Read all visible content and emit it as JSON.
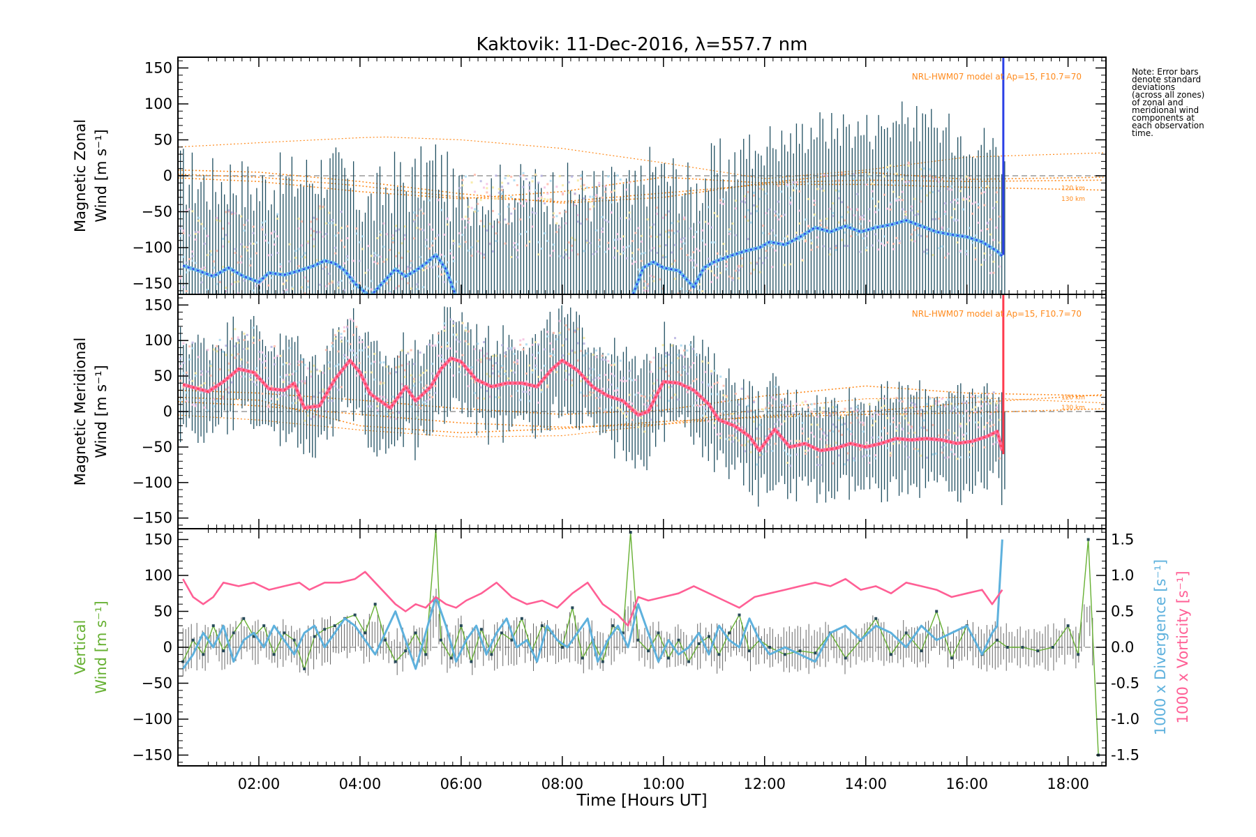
{
  "figure": {
    "title": "Kaktovik: 11-Dec-2016, λ=557.7 nm",
    "xlabel": "Time [Hours UT]",
    "note_lines": [
      "Note: Error bars",
      "denote standard",
      "deviations",
      "(across all zones)",
      "of zonal and",
      "meridional wind",
      "components at",
      "each observation",
      "time."
    ],
    "model_label": "NRL-HWM07 model at Ap=15, F10.7=70",
    "alt_labels": [
      "120 km",
      "130 km"
    ],
    "colors": {
      "zonal": "#2b40e6",
      "zonal_light": "#69b9ec",
      "meridional": "#ff3b4e",
      "meridional_light": "#ff6d9a",
      "vertical": "#66b032",
      "divergence": "#5eb1dd",
      "vorticity": "#ff5f95",
      "errorbar": "#1f4e60",
      "model": "#ff8a1c"
    }
  },
  "chart_data": [
    {
      "type": "line",
      "panel": "zonal",
      "ylabel": [
        "Magnetic Zonal",
        "Wind [m s⁻¹]"
      ],
      "xlim": [
        0.4,
        18.75
      ],
      "ylim": [
        -165,
        165
      ],
      "yticks": [
        -150,
        -100,
        -50,
        0,
        50,
        100,
        150
      ],
      "xticks": [
        "02:00",
        "04:00",
        "06:00",
        "08:00",
        "10:00",
        "12:00",
        "14:00",
        "16:00",
        "18:00"
      ],
      "series": [
        {
          "name": "",
          "x": [
            0.5,
            0.8,
            1.1,
            1.4,
            1.7,
            2.0,
            2.2,
            2.5,
            2.8,
            3.1,
            3.3,
            3.5,
            3.7,
            3.9,
            4.2,
            4.5,
            4.7,
            4.9,
            5.1,
            5.3,
            5.5,
            5.7,
            5.9
          ],
          "values": [
            -125,
            -132,
            -140,
            -128,
            -140,
            -148,
            -135,
            -138,
            -132,
            -125,
            -118,
            -122,
            -132,
            -150,
            -168,
            -145,
            -130,
            -140,
            -132,
            -122,
            -110,
            -130,
            -168
          ]
        },
        {
          "name": "",
          "x": [
            9.4,
            9.6,
            9.8,
            10.0,
            10.3,
            10.6,
            10.8,
            11.0,
            11.3,
            11.6,
            11.9,
            12.1,
            12.4,
            12.7,
            13.0,
            13.3,
            13.6,
            13.9,
            14.2,
            14.5,
            14.8,
            15.1,
            15.4,
            15.7,
            16.0,
            16.3,
            16.6,
            16.7
          ],
          "values": [
            -165,
            -128,
            -120,
            -128,
            -132,
            -155,
            -128,
            -120,
            -112,
            -105,
            -100,
            -92,
            -96,
            -85,
            -72,
            -78,
            -70,
            -78,
            -72,
            -68,
            -62,
            -70,
            -78,
            -82,
            -85,
            -92,
            -105,
            -112
          ]
        }
      ],
      "model_curves": [
        {
          "x": [
            0.4,
            2,
            4,
            4.5,
            6,
            8,
            10,
            12,
            14,
            16,
            18.75
          ],
          "values": [
            40,
            46,
            53,
            54,
            50,
            38,
            18,
            -4,
            8,
            26,
            32
          ]
        },
        {
          "x": [
            0.4,
            2,
            4,
            6,
            8,
            10,
            12,
            14,
            16,
            18.75
          ],
          "values": [
            8,
            5,
            -8,
            -25,
            -38,
            -30,
            -10,
            5,
            -5,
            -2
          ]
        },
        {
          "x": [
            0.4,
            2,
            4,
            6,
            8,
            10,
            12,
            14,
            16,
            18.75
          ],
          "values": [
            2,
            -2,
            -14,
            -30,
            -36,
            -24,
            -12,
            -12,
            -16,
            -20
          ]
        },
        {
          "x": [
            0.4,
            2,
            4,
            6,
            8,
            10,
            12,
            14,
            16,
            18.75
          ],
          "values": [
            -3,
            -8,
            -22,
            -32,
            -22,
            -2,
            -10,
            -6,
            -8,
            -6
          ]
        }
      ]
    },
    {
      "type": "line",
      "panel": "meridional",
      "ylabel": [
        "Magnetic Meridional",
        "Wind [m s⁻¹]"
      ],
      "xlim": [
        0.4,
        18.75
      ],
      "ylim": [
        -165,
        165
      ],
      "yticks": [
        -150,
        -100,
        -50,
        0,
        50,
        100,
        150
      ],
      "series": [
        {
          "name": "",
          "x": [
            0.5,
            0.8,
            1.0,
            1.3,
            1.6,
            1.9,
            2.2,
            2.5,
            2.7,
            2.9,
            3.2,
            3.5,
            3.8,
            4.0,
            4.2,
            4.4,
            4.6,
            4.9,
            5.1,
            5.4,
            5.6,
            5.8,
            6.0,
            6.3,
            6.6,
            6.9,
            7.2,
            7.5,
            7.8,
            8.0,
            8.3,
            8.6,
            8.9,
            9.2,
            9.5,
            9.7,
            10.0,
            10.3,
            10.6,
            10.9,
            11.1,
            11.4,
            11.7,
            11.9,
            12.2,
            12.5,
            12.8,
            13.1,
            13.4,
            13.7,
            14.0,
            14.3,
            14.6,
            14.9,
            15.2,
            15.5,
            15.8,
            16.1,
            16.4,
            16.6,
            16.7
          ],
          "values": [
            38,
            32,
            28,
            42,
            60,
            55,
            32,
            30,
            40,
            5,
            8,
            45,
            72,
            55,
            25,
            15,
            5,
            35,
            15,
            35,
            60,
            75,
            70,
            45,
            35,
            40,
            40,
            35,
            60,
            72,
            58,
            35,
            22,
            15,
            -5,
            0,
            42,
            40,
            30,
            10,
            -12,
            -20,
            -35,
            -55,
            -25,
            -50,
            -45,
            -55,
            -52,
            -45,
            -50,
            -45,
            -38,
            -40,
            -38,
            -40,
            -45,
            -42,
            -35,
            -28,
            -55
          ]
        }
      ],
      "model_curves": [
        {
          "x": [
            0.4,
            2,
            4,
            6,
            8,
            10,
            12,
            14,
            16,
            18.75
          ],
          "values": [
            -5,
            -12,
            -26,
            -36,
            -34,
            -18,
            4,
            18,
            20,
            12
          ]
        },
        {
          "x": [
            0.4,
            2,
            4,
            6,
            8,
            10,
            12,
            14,
            16,
            18.75
          ],
          "values": [
            30,
            26,
            16,
            4,
            -4,
            2,
            22,
            36,
            26,
            22
          ]
        },
        {
          "x": [
            0.4,
            2,
            4,
            6,
            8,
            10,
            12,
            14,
            16,
            18.75
          ],
          "values": [
            14,
            8,
            -4,
            -16,
            -22,
            -18,
            -6,
            0,
            12,
            24
          ]
        },
        {
          "x": [
            0.4,
            2,
            4,
            6,
            8,
            10,
            12,
            14,
            16,
            18.75
          ],
          "values": [
            20,
            16,
            -20,
            -30,
            -24,
            -14,
            -8,
            -4,
            -2,
            4
          ]
        }
      ]
    },
    {
      "type": "line",
      "panel": "vertical",
      "ylabel_green": [
        "Vertical",
        "Wind [m s⁻¹]"
      ],
      "ylabel_right_blue": "1000 x Divergence [s⁻¹]",
      "ylabel_right_pink": "1000 x Vorticity [s⁻¹]",
      "xlim": [
        0.4,
        18.75
      ],
      "ylim": [
        -165,
        165
      ],
      "y2lim": [
        -1.65,
        1.65
      ],
      "yticks": [
        -150,
        -100,
        -50,
        0,
        50,
        100,
        150
      ],
      "y2ticks": [
        "-1.5",
        "-1.0",
        "-0.5",
        "0.0",
        "0.5",
        "1.0",
        "1.5"
      ],
      "series": [
        {
          "name": "",
          "axis": "left",
          "x": [
            0.5,
            0.7,
            0.9,
            1.1,
            1.3,
            1.5,
            1.7,
            1.9,
            2.1,
            2.3,
            2.5,
            2.7,
            2.9,
            3.1,
            3.3,
            3.5,
            3.7,
            3.9,
            4.1,
            4.3,
            4.5,
            4.7,
            4.9,
            5.1,
            5.3,
            5.5,
            5.6,
            5.8,
            6.0,
            6.2,
            6.4,
            6.6,
            6.8,
            7.0,
            7.2,
            7.4,
            7.6,
            7.8,
            8.0,
            8.2,
            8.4,
            8.6,
            8.8,
            9.0,
            9.2,
            9.35,
            9.5,
            9.7,
            9.9,
            10.1,
            10.3,
            10.5,
            10.7,
            10.9,
            11.1,
            11.3,
            11.5,
            11.7,
            11.9,
            12.1,
            12.4,
            12.7,
            13.0,
            13.3,
            13.6,
            13.9,
            14.2,
            14.5,
            14.8,
            15.1,
            15.4,
            15.7,
            16.0,
            16.3,
            16.6,
            16.8,
            17.1,
            17.4,
            17.7,
            18.0,
            18.2,
            18.4,
            18.6
          ],
          "values": [
            -20,
            10,
            -10,
            30,
            -5,
            20,
            40,
            15,
            30,
            -10,
            20,
            10,
            -30,
            15,
            25,
            30,
            40,
            45,
            20,
            60,
            10,
            -20,
            -5,
            20,
            -10,
            165,
            10,
            -15,
            30,
            -20,
            25,
            -10,
            20,
            10,
            40,
            -5,
            30,
            20,
            0,
            55,
            -15,
            10,
            -20,
            30,
            20,
            160,
            10,
            -5,
            20,
            -15,
            10,
            -20,
            5,
            15,
            -10,
            20,
            45,
            -5,
            10,
            0,
            -10,
            -5,
            -8,
            20,
            -15,
            10,
            40,
            -10,
            20,
            -5,
            50,
            -15,
            30,
            -10,
            10,
            0,
            0,
            -5,
            0,
            30,
            -10,
            150,
            -150
          ]
        },
        {
          "name": "",
          "axis": "right",
          "x": [
            0.5,
            0.7,
            0.9,
            1.1,
            1.3,
            1.5,
            1.7,
            1.9,
            2.1,
            2.3,
            2.5,
            2.7,
            2.9,
            3.1,
            3.3,
            3.5,
            3.7,
            3.9,
            4.1,
            4.3,
            4.5,
            4.7,
            4.9,
            5.1,
            5.3,
            5.5,
            5.7,
            5.9,
            6.1,
            6.3,
            6.5,
            6.7,
            6.9,
            7.1,
            7.3,
            7.5,
            7.7,
            7.9,
            8.1,
            8.3,
            8.5,
            8.7,
            8.9,
            9.1,
            9.3,
            9.5,
            9.7,
            9.9,
            10.1,
            10.3,
            10.5,
            10.7,
            10.9,
            11.1,
            11.3,
            11.5,
            11.7,
            11.9,
            12.1,
            12.4,
            12.7,
            13.0,
            13.3,
            13.6,
            13.9,
            14.2,
            14.5,
            14.8,
            15.1,
            15.4,
            15.7,
            16.0,
            16.3,
            16.5,
            16.6,
            16.7
          ],
          "values": [
            -0.3,
            -0.1,
            0.2,
            0.0,
            0.3,
            -0.2,
            0.1,
            0.2,
            0.0,
            0.3,
            0.1,
            -0.1,
            0.2,
            0.3,
            0.0,
            0.2,
            0.4,
            0.3,
            0.1,
            -0.1,
            0.2,
            0.5,
            0.1,
            -0.3,
            0.2,
            0.7,
            0.3,
            -0.2,
            0.1,
            0.3,
            -0.1,
            0.2,
            0.4,
            0.0,
            0.1,
            -0.2,
            0.3,
            0.1,
            0.0,
            0.2,
            0.4,
            -0.2,
            0.1,
            0.3,
            0.0,
            0.6,
            0.2,
            -0.2,
            0.1,
            -0.1,
            0.0,
            0.2,
            -0.1,
            0.3,
            0.1,
            0.0,
            0.4,
            0.1,
            -0.1,
            0.0,
            -0.1,
            -0.2,
            0.2,
            0.3,
            0.1,
            0.3,
            0.2,
            0.0,
            0.3,
            0.1,
            0.2,
            0.3,
            -0.1,
            0.2,
            0.3,
            1.5
          ]
        },
        {
          "name": "",
          "axis": "right",
          "x": [
            0.5,
            0.7,
            0.9,
            1.1,
            1.3,
            1.6,
            1.9,
            2.2,
            2.5,
            2.8,
            3.0,
            3.3,
            3.6,
            3.9,
            4.1,
            4.3,
            4.5,
            4.7,
            4.9,
            5.1,
            5.3,
            5.5,
            5.7,
            5.9,
            6.1,
            6.4,
            6.7,
            7.0,
            7.3,
            7.6,
            7.9,
            8.2,
            8.5,
            8.8,
            9.1,
            9.3,
            9.5,
            9.7,
            10.0,
            10.3,
            10.6,
            10.9,
            11.2,
            11.5,
            11.8,
            12.1,
            12.4,
            12.7,
            13.0,
            13.3,
            13.6,
            13.9,
            14.2,
            14.5,
            14.8,
            15.1,
            15.4,
            15.7,
            16.0,
            16.3,
            16.5,
            16.7
          ],
          "values": [
            0.95,
            0.7,
            0.6,
            0.7,
            0.9,
            0.85,
            0.9,
            0.8,
            0.85,
            0.9,
            0.8,
            0.9,
            0.9,
            0.95,
            1.05,
            0.9,
            0.75,
            0.6,
            0.5,
            0.6,
            0.55,
            0.7,
            0.6,
            0.55,
            0.65,
            0.75,
            0.9,
            0.7,
            0.6,
            0.65,
            0.55,
            0.75,
            0.9,
            0.6,
            0.45,
            0.3,
            0.7,
            0.65,
            0.7,
            0.75,
            0.85,
            0.75,
            0.65,
            0.55,
            0.7,
            0.75,
            0.8,
            0.85,
            0.9,
            0.85,
            0.95,
            0.8,
            0.85,
            0.75,
            0.9,
            0.85,
            0.8,
            0.7,
            0.75,
            0.8,
            0.6,
            0.8
          ]
        }
      ]
    }
  ]
}
